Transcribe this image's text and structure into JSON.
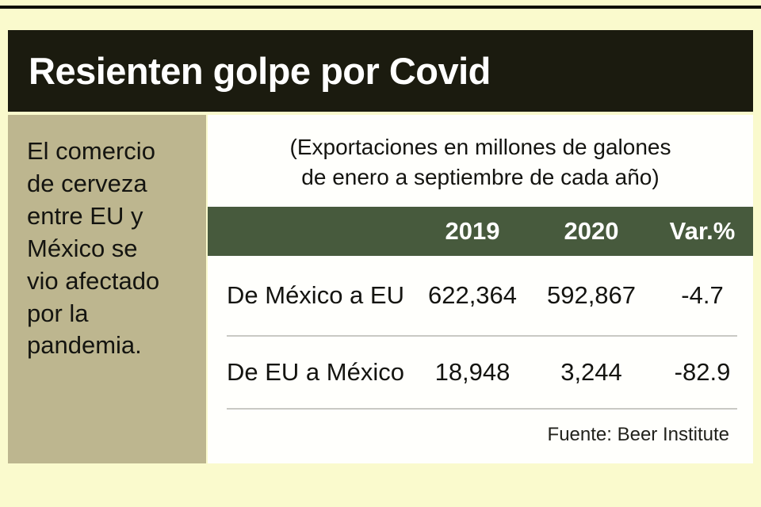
{
  "title": "Resienten golpe por Covid",
  "sidebar": {
    "lines": [
      "El comercio",
      "de cerveza",
      "entre EU y",
      "México se",
      "vio afectado",
      "por la",
      "pandemia."
    ]
  },
  "chart_data": {
    "type": "table",
    "title": "Resienten golpe por Covid",
    "subtitle_lines": [
      "(Exportaciones en millones de galones",
      "de enero a septiembre de cada año)"
    ],
    "units": "millones de galones",
    "columns": [
      "2019",
      "2020",
      "Var.%"
    ],
    "rows": [
      {
        "label": "De México a EU",
        "values": [
          "622,364",
          "592,867",
          "-4.7"
        ]
      },
      {
        "label": "De EU a México",
        "values": [
          "18,948",
          "3,244",
          "-82.9"
        ]
      }
    ],
    "source": "Fuente: Beer Institute"
  },
  "colors": {
    "background": "#fafacd",
    "header_bg": "#1b1b0f",
    "sidebar_bg": "#bdb68f",
    "table_header_bg": "#475a3d",
    "panel_bg": "#fffffc"
  }
}
